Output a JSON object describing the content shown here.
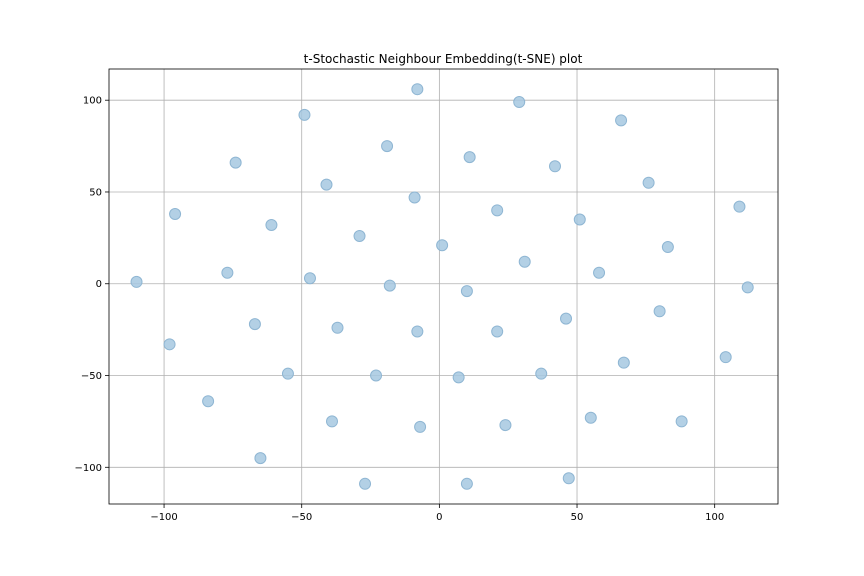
{
  "chart_data": {
    "type": "scatter",
    "title": "t-Stochastic Neighbour Embedding(t-SNE) plot",
    "xlabel": "",
    "ylabel": "",
    "xlim": [
      -120,
      123
    ],
    "ylim": [
      -120,
      117
    ],
    "xticks": [
      -100,
      -50,
      0,
      50,
      100
    ],
    "yticks": [
      -100,
      -50,
      0,
      50,
      100
    ],
    "grid": true,
    "marker_color": "#a6c8e0",
    "marker_edge_color": "#8fb6d3",
    "points": [
      {
        "x": -110,
        "y": 1
      },
      {
        "x": -96,
        "y": 38
      },
      {
        "x": -98,
        "y": -33
      },
      {
        "x": -84,
        "y": -64
      },
      {
        "x": -77,
        "y": 6
      },
      {
        "x": -74,
        "y": 66
      },
      {
        "x": -67,
        "y": -22
      },
      {
        "x": -65,
        "y": -95
      },
      {
        "x": -61,
        "y": 32
      },
      {
        "x": -55,
        "y": -49
      },
      {
        "x": -49,
        "y": 92
      },
      {
        "x": -47,
        "y": 3
      },
      {
        "x": -41,
        "y": 54
      },
      {
        "x": -39,
        "y": -75
      },
      {
        "x": -37,
        "y": -24
      },
      {
        "x": -29,
        "y": 26
      },
      {
        "x": -27,
        "y": -109
      },
      {
        "x": -23,
        "y": -50
      },
      {
        "x": -19,
        "y": 75
      },
      {
        "x": -18,
        "y": -1
      },
      {
        "x": -9,
        "y": 47
      },
      {
        "x": -8,
        "y": 106
      },
      {
        "x": -8,
        "y": -26
      },
      {
        "x": -7,
        "y": -78
      },
      {
        "x": 1,
        "y": 21
      },
      {
        "x": 7,
        "y": -51
      },
      {
        "x": 10,
        "y": -4
      },
      {
        "x": 10,
        "y": -109
      },
      {
        "x": 11,
        "y": 69
      },
      {
        "x": 21,
        "y": 40
      },
      {
        "x": 21,
        "y": -26
      },
      {
        "x": 24,
        "y": -77
      },
      {
        "x": 29,
        "y": 99
      },
      {
        "x": 31,
        "y": 12
      },
      {
        "x": 37,
        "y": -49
      },
      {
        "x": 42,
        "y": 64
      },
      {
        "x": 46,
        "y": -19
      },
      {
        "x": 47,
        "y": -106
      },
      {
        "x": 51,
        "y": 35
      },
      {
        "x": 55,
        "y": -73
      },
      {
        "x": 58,
        "y": 6
      },
      {
        "x": 66,
        "y": 89
      },
      {
        "x": 67,
        "y": -43
      },
      {
        "x": 76,
        "y": 55
      },
      {
        "x": 80,
        "y": -15
      },
      {
        "x": 83,
        "y": 20
      },
      {
        "x": 88,
        "y": -75
      },
      {
        "x": 104,
        "y": -40
      },
      {
        "x": 109,
        "y": 42
      },
      {
        "x": 112,
        "y": -2
      }
    ]
  }
}
